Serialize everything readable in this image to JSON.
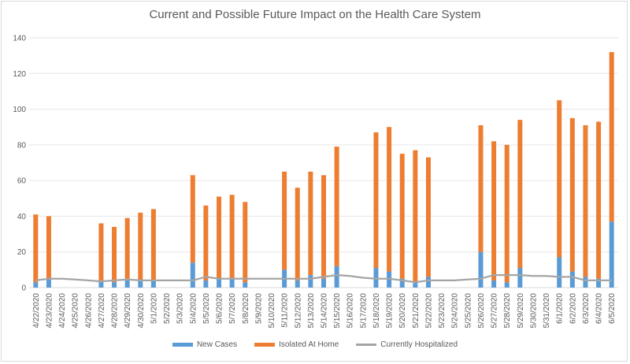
{
  "chart_data": {
    "type": "bar",
    "title": "Current and Possible Future Impact on the Health Care System",
    "xlabel": "",
    "ylabel": "",
    "ylim": [
      0,
      140
    ],
    "yticks": [
      0,
      20,
      40,
      60,
      80,
      100,
      120,
      140
    ],
    "grid": true,
    "legend_position": "bottom",
    "categories": [
      "4/22/2020",
      "4/23/2020",
      "4/24/2020",
      "4/25/2020",
      "4/26/2020",
      "4/27/2020",
      "4/28/2020",
      "4/29/2020",
      "4/30/2020",
      "5/1/2020",
      "5/2/2020",
      "5/3/2020",
      "5/4/2020",
      "5/5/2020",
      "5/6/2020",
      "5/7/2020",
      "5/8/2020",
      "5/9/2020",
      "5/10/2020",
      "5/11/2020",
      "5/12/2020",
      "5/13/2020",
      "5/14/2020",
      "5/15/2020",
      "5/16/2020",
      "5/17/2020",
      "5/18/2020",
      "5/19/2020",
      "5/20/2020",
      "5/21/2020",
      "5/22/2020",
      "5/23/2020",
      "5/24/2020",
      "5/25/2020",
      "5/26/2020",
      "5/27/2020",
      "5/28/2020",
      "5/29/2020",
      "5/30/2020",
      "5/31/2020",
      "6/1/2020",
      "6/2/2020",
      "6/3/2020",
      "6/4/2020",
      "6/5/2020"
    ],
    "series": [
      {
        "name": "New Cases",
        "kind": "stacked-bar",
        "color": "#5b9bd5",
        "values": [
          3,
          5,
          null,
          null,
          null,
          4,
          3,
          5,
          4,
          4,
          null,
          null,
          14,
          4,
          5,
          5,
          3,
          null,
          null,
          10,
          4,
          7,
          5,
          12,
          null,
          null,
          11,
          9,
          5,
          3,
          6,
          null,
          null,
          null,
          20,
          4,
          3,
          11,
          null,
          null,
          17,
          9,
          6,
          5,
          37
        ]
      },
      {
        "name": "Isolated At Home",
        "kind": "stacked-bar",
        "color": "#ed7d31",
        "values": [
          38,
          35,
          null,
          null,
          null,
          32,
          31,
          34,
          38,
          40,
          null,
          null,
          49,
          42,
          46,
          47,
          45,
          null,
          null,
          55,
          52,
          58,
          58,
          67,
          null,
          null,
          76,
          81,
          70,
          74,
          67,
          null,
          null,
          null,
          71,
          78,
          77,
          83,
          null,
          null,
          88,
          86,
          85,
          88,
          95
        ]
      },
      {
        "name": "Currently Hospitalized",
        "kind": "line",
        "color": "#a5a5a5",
        "values": [
          4,
          5,
          5,
          4.5,
          4,
          3.5,
          4,
          4.5,
          4,
          4,
          4,
          4,
          4,
          6,
          5,
          5,
          5,
          5,
          5,
          5,
          5,
          5,
          6,
          7,
          6.5,
          5.5,
          5,
          5,
          4,
          3,
          4,
          4,
          4,
          4.5,
          5,
          7,
          7,
          7,
          6.5,
          6.5,
          6,
          6,
          4,
          4,
          4
        ]
      }
    ]
  }
}
